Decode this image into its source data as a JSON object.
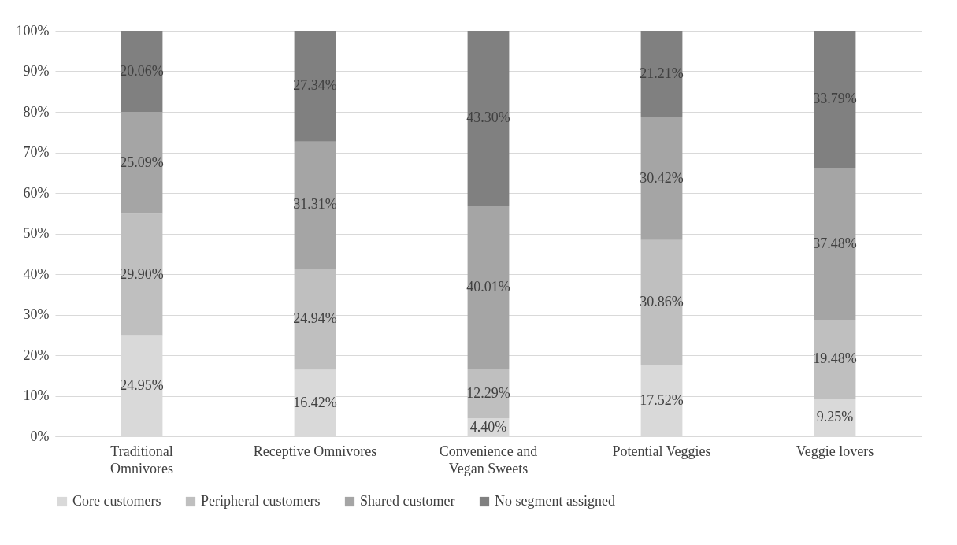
{
  "chart_data": {
    "type": "bar",
    "stacked": true,
    "categories": [
      "Traditional Omnivores",
      "Receptive Omnivores",
      "Convenience and Vegan Sweets",
      "Potential Veggies",
      "Veggie lovers"
    ],
    "series": [
      {
        "name": "Core customers",
        "color": "#d9d9d9",
        "values": [
          24.95,
          16.42,
          4.4,
          17.52,
          9.25
        ],
        "value_labels": [
          "24.95%",
          "16.42%",
          "4.40%",
          "17.52%",
          "9.25%"
        ]
      },
      {
        "name": "Peripheral customers",
        "color": "#bfbfbf",
        "values": [
          29.9,
          24.94,
          12.29,
          30.86,
          19.48
        ],
        "value_labels": [
          "29.90%",
          "24.94%",
          "12.29%",
          "30.86%",
          "19.48%"
        ]
      },
      {
        "name": "Shared customer",
        "color": "#a5a5a5",
        "values": [
          25.09,
          31.31,
          40.01,
          30.42,
          37.48
        ],
        "value_labels": [
          "25.09%",
          "31.31%",
          "40.01%",
          "30.42%",
          "37.48%"
        ]
      },
      {
        "name": "No segment assigned",
        "color": "#808080",
        "values": [
          20.06,
          27.34,
          43.3,
          21.21,
          33.79
        ],
        "value_labels": [
          "20.06%",
          "27.34%",
          "43.30%",
          "21.21%",
          "33.79%"
        ]
      }
    ],
    "ylim": [
      0,
      100
    ],
    "yticks": [
      {
        "value": 0,
        "label": "0%"
      },
      {
        "value": 10,
        "label": "10%"
      },
      {
        "value": 20,
        "label": "20%"
      },
      {
        "value": 30,
        "label": "30%"
      },
      {
        "value": 40,
        "label": "40%"
      },
      {
        "value": 50,
        "label": "50%"
      },
      {
        "value": 60,
        "label": "60%"
      },
      {
        "value": 70,
        "label": "70%"
      },
      {
        "value": 80,
        "label": "80%"
      },
      {
        "value": 90,
        "label": "90%"
      },
      {
        "value": 100,
        "label": "100%"
      }
    ],
    "grid": "y",
    "legend": "bottom"
  }
}
